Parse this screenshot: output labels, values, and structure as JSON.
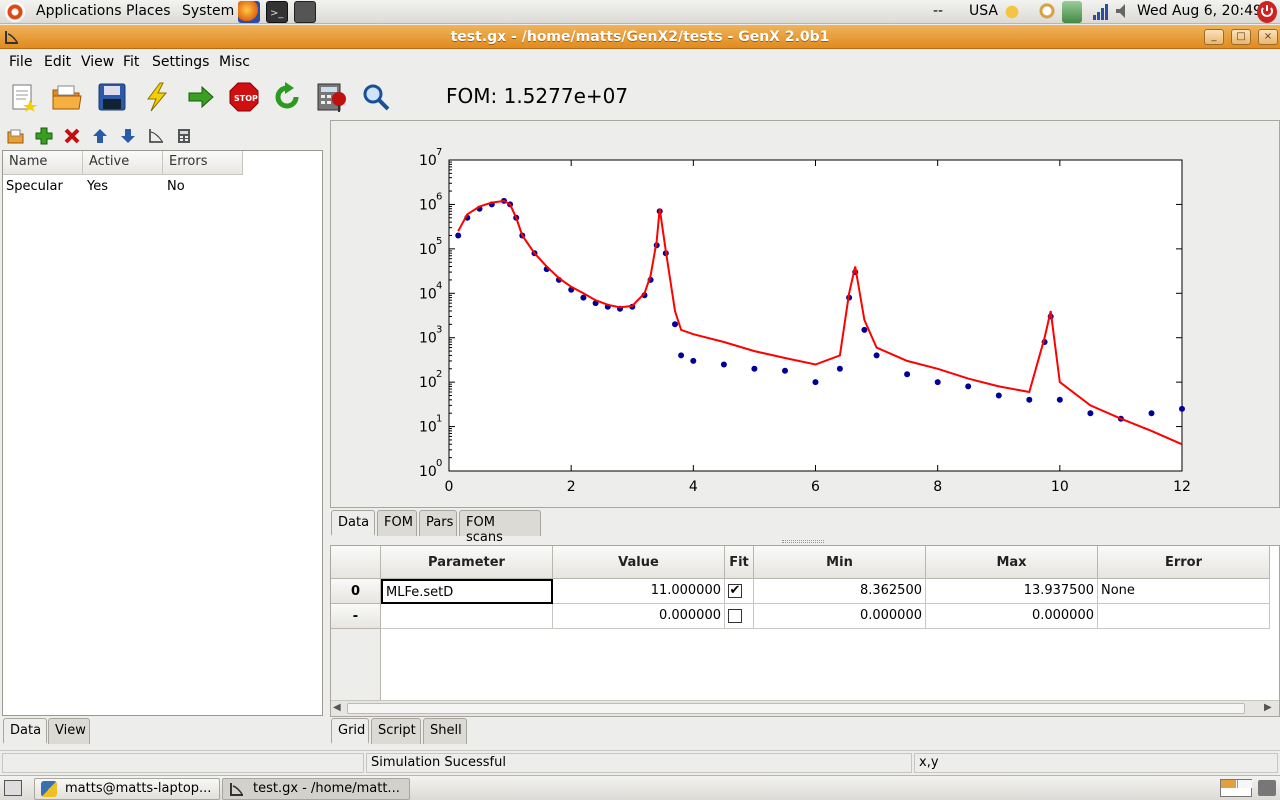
{
  "top_panel": {
    "menus": [
      "Applications",
      "Places",
      "System"
    ],
    "indicator": "--",
    "keyboard": "USA",
    "clock": "Wed Aug  6, 20:49"
  },
  "window": {
    "title": "test.gx - /home/matts/GenX2/tests - GenX 2.0b1"
  },
  "menubar": [
    "File",
    "Edit",
    "View",
    "Fit",
    "Settings",
    "Misc"
  ],
  "toolbar": {
    "buttons": [
      "new-file",
      "open-folder",
      "save",
      "simulate-lightning",
      "start-fit-arrow",
      "stop",
      "restart-fit",
      "calculator",
      "zoom"
    ],
    "fom_label": "FOM: 1.5277e+07"
  },
  "data_list": {
    "columns": [
      "Name",
      "Active",
      "Errors"
    ],
    "rows": [
      {
        "name": "Specular",
        "active": "Yes",
        "errors": "No"
      }
    ],
    "tabs": [
      "Data",
      "View"
    ],
    "active_tab": "Data"
  },
  "plot_tabs": [
    "Data",
    "FOM",
    "Pars",
    "FOM scans"
  ],
  "plot_active_tab": "Data",
  "chart_data": {
    "type": "scatter",
    "y_scale": "log",
    "xlim": [
      0,
      12
    ],
    "ylim": [
      1,
      10000000
    ],
    "x_ticks": [
      "0",
      "2",
      "4",
      "6",
      "8",
      "10",
      "12"
    ],
    "y_ticks": [
      {
        "base": "10",
        "exp": "0"
      },
      {
        "base": "10",
        "exp": "1"
      },
      {
        "base": "10",
        "exp": "2"
      },
      {
        "base": "10",
        "exp": "3"
      },
      {
        "base": "10",
        "exp": "4"
      },
      {
        "base": "10",
        "exp": "5"
      },
      {
        "base": "10",
        "exp": "6"
      },
      {
        "base": "10",
        "exp": "7"
      }
    ],
    "series": [
      {
        "style": "points",
        "color": "#000099",
        "x": [
          0.15,
          0.3,
          0.5,
          0.7,
          0.9,
          1.0,
          1.1,
          1.2,
          1.4,
          1.6,
          1.8,
          2.0,
          2.2,
          2.4,
          2.6,
          2.8,
          3.0,
          3.2,
          3.3,
          3.4,
          3.45,
          3.55,
          3.7,
          3.8,
          4.0,
          4.5,
          5.0,
          5.5,
          6.0,
          6.4,
          6.55,
          6.65,
          6.8,
          7.0,
          7.5,
          8.0,
          8.5,
          9.0,
          9.5,
          9.75,
          9.85,
          10.0,
          10.5,
          11.0,
          11.5,
          12.0
        ],
        "y": [
          200000,
          500000,
          800000,
          1000000,
          1200000,
          1000000,
          500000,
          200000,
          80000,
          35000,
          20000,
          12000,
          8000,
          6000,
          5000,
          4500,
          5000,
          9000,
          20000,
          120000,
          700000,
          80000,
          2000,
          400,
          300,
          250,
          200,
          180,
          100,
          200,
          8000,
          30000,
          1500,
          400,
          150,
          100,
          80,
          50,
          40,
          800,
          3000,
          40,
          20,
          15,
          20,
          25
        ]
      },
      {
        "style": "line",
        "color": "#ff0000",
        "x": [
          0.15,
          0.3,
          0.5,
          0.7,
          0.9,
          1.0,
          1.1,
          1.2,
          1.4,
          1.6,
          1.8,
          2.0,
          2.2,
          2.4,
          2.6,
          2.8,
          3.0,
          3.2,
          3.3,
          3.4,
          3.45,
          3.55,
          3.7,
          3.8,
          4.0,
          4.5,
          5.0,
          5.5,
          6.0,
          6.4,
          6.55,
          6.65,
          6.8,
          7.0,
          7.5,
          8.0,
          8.5,
          9.0,
          9.5,
          9.75,
          9.85,
          10.0,
          10.5,
          11.0,
          11.5,
          12.0
        ],
        "y": [
          250000,
          600000,
          900000,
          1100000,
          1200000,
          1000000,
          500000,
          200000,
          80000,
          40000,
          22000,
          14000,
          10000,
          7000,
          5500,
          4800,
          5200,
          10000,
          25000,
          150000,
          800000,
          90000,
          4000,
          1500,
          1200,
          800,
          500,
          350,
          250,
          400,
          10000,
          40000,
          2500,
          600,
          300,
          200,
          120,
          80,
          60,
          1000,
          4000,
          100,
          30,
          15,
          8,
          4
        ]
      }
    ]
  },
  "grid": {
    "columns": [
      "Parameter",
      "Value",
      "Fit",
      "Min",
      "Max",
      "Error"
    ],
    "rows": [
      {
        "label": "0",
        "parameter": "MLFe.setD",
        "value": "11.000000",
        "fit": true,
        "min": "8.362500",
        "max": "13.937500",
        "error": "None"
      },
      {
        "label": "-",
        "parameter": "",
        "value": "0.000000",
        "fit": false,
        "min": "0.000000",
        "max": "0.000000",
        "error": ""
      }
    ]
  },
  "bottom_tabs": [
    "Grid",
    "Script",
    "Shell"
  ],
  "bottom_active_tab": "Grid",
  "statusbar": {
    "message": "Simulation Sucessful",
    "coords": "x,y"
  },
  "taskbar": [
    {
      "label": "matts@matts-laptop..."
    },
    {
      "label": "test.gx - /home/matt..."
    }
  ],
  "colors": {
    "title_bar": "#e8a040",
    "data_points": "#000099",
    "simulation_line": "#ff0000"
  }
}
